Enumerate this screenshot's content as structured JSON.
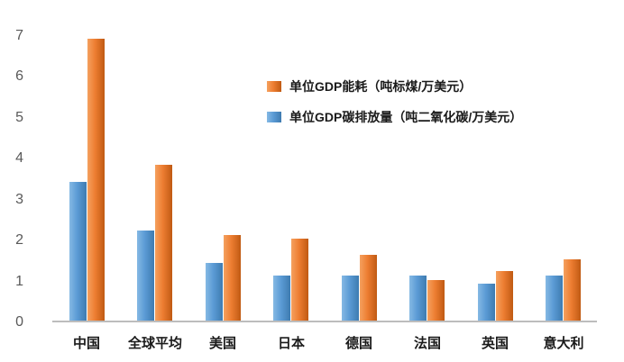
{
  "chart_data": {
    "type": "bar",
    "title": "",
    "xlabel": "",
    "ylabel": "",
    "categories": [
      "中国",
      "全球平均",
      "美国",
      "日本",
      "德国",
      "法国",
      "英国",
      "意大利"
    ],
    "series": [
      {
        "name": "单位GDP碳排放量（吨二氧化碳/万美元）",
        "color": "#5b9bd5",
        "color_light": "#85b9e4",
        "color_dark": "#3e7bb0",
        "values": [
          3.4,
          2.2,
          1.4,
          1.1,
          1.1,
          1.1,
          0.9,
          1.1
        ]
      },
      {
        "name": "单位GDP能耗（吨标煤/万美元）",
        "color": "#ed7d31",
        "color_light": "#f5a15f",
        "color_dark": "#c05a13",
        "values": [
          6.9,
          3.8,
          2.1,
          2.0,
          1.6,
          1.0,
          1.2,
          1.5
        ]
      }
    ],
    "ylim": [
      0,
      7
    ],
    "yticks": [
      0,
      1,
      2,
      3,
      4,
      5,
      6,
      7
    ],
    "grid": false,
    "legend_position": "center-right"
  },
  "legend": {
    "items": [
      {
        "label": "单位GDP能耗（吨标煤/万美元）",
        "color": "#ed7d31",
        "color_light": "#f5a15f",
        "color_dark": "#c05a13"
      },
      {
        "label": "单位GDP碳排放量（吨二氧化碳/万美元）",
        "color": "#5b9bd5",
        "color_light": "#85b9e4",
        "color_dark": "#3e7bb0"
      }
    ]
  },
  "axes": {
    "y_tick_color": "#595959",
    "axis_line_color": "#bdbdbd"
  }
}
